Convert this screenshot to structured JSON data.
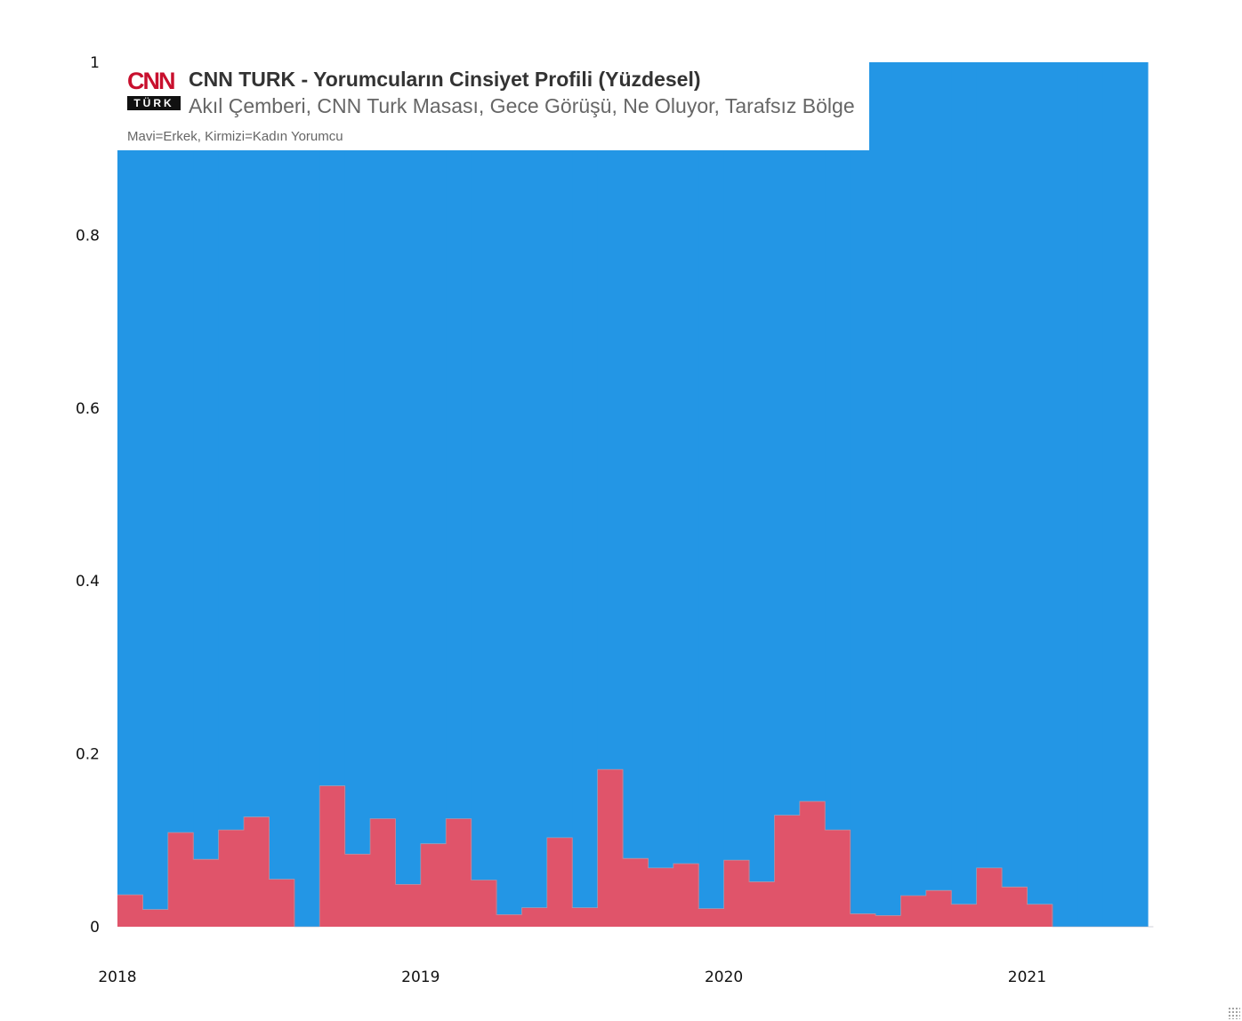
{
  "header": {
    "logo_text": "CNN",
    "logo_subtext": "TÜRK",
    "title": "CNN TURK - Yorumcuların Cinsiyet Profili (Yüzdesel)",
    "subtitle": "Akıl Çemberi, CNN Turk Masası, Gece Görüşü, Ne Oluyor, Tarafsız Bölge",
    "note": "Mavi=Erkek, Kirmizi=Kadın Yorumcu"
  },
  "colors": {
    "male": "#2396e5",
    "female": "#e0546a"
  },
  "chart_data": {
    "type": "area",
    "stacked": "percent",
    "title": "CNN TURK - Yorumcuların Cinsiyet Profili (Yüzdesel)",
    "subtitle": "Akıl Çemberi, CNN Turk Masası, Gece Görüşü, Ne Oluyor, Tarafsız Bölge",
    "xlabel": "",
    "ylabel": "",
    "x_ticks": [
      "2018",
      "2019",
      "2020",
      "2021"
    ],
    "y_ticks": [
      "0",
      "0.2",
      "0.4",
      "0.6",
      "0.8",
      "1"
    ],
    "ylim": [
      0,
      1
    ],
    "grid": false,
    "interval": "month",
    "x": [
      "2018-01",
      "2018-02",
      "2018-03",
      "2018-04",
      "2018-05",
      "2018-06",
      "2018-07",
      "2018-08",
      "2018-09",
      "2018-10",
      "2018-11",
      "2018-12",
      "2019-01",
      "2019-02",
      "2019-03",
      "2019-04",
      "2019-05",
      "2019-06",
      "2019-07",
      "2019-08",
      "2019-09",
      "2019-10",
      "2019-11",
      "2019-12",
      "2020-01",
      "2020-02",
      "2020-03",
      "2020-04",
      "2020-05",
      "2020-06",
      "2020-07",
      "2020-08",
      "2020-09",
      "2020-10",
      "2020-11",
      "2020-12",
      "2021-01",
      "2021-02",
      "2021-03",
      "2021-04",
      "2021-05"
    ],
    "series": [
      {
        "name": "Kadın Yorumcu",
        "values": [
          0.037,
          0.02,
          0.109,
          0.078,
          0.112,
          0.127,
          0.055,
          0,
          0.163,
          0.084,
          0.125,
          0.049,
          0.096,
          0.125,
          0.054,
          0.014,
          0.022,
          0.103,
          0.022,
          0.182,
          0.079,
          0.068,
          0.073,
          0.021,
          0.077,
          0.052,
          0.129,
          0.145,
          0.112,
          0.015,
          0.013,
          0.036,
          0.042,
          0.026,
          0.068,
          0.046,
          0.026,
          0,
          0,
          0,
          0
        ]
      },
      {
        "name": "Erkek Yorumcu",
        "values": [
          0.963,
          0.98,
          0.891,
          0.922,
          0.888,
          0.873,
          0.945,
          1,
          0.837,
          0.916,
          0.875,
          0.951,
          0.904,
          0.875,
          0.946,
          0.986,
          0.978,
          0.897,
          0.978,
          0.818,
          0.921,
          0.932,
          0.927,
          0.979,
          0.923,
          0.948,
          0.871,
          0.855,
          0.888,
          0.985,
          0.987,
          0.964,
          0.958,
          0.974,
          0.932,
          0.954,
          0.974,
          1,
          1,
          1,
          1
        ]
      }
    ]
  }
}
